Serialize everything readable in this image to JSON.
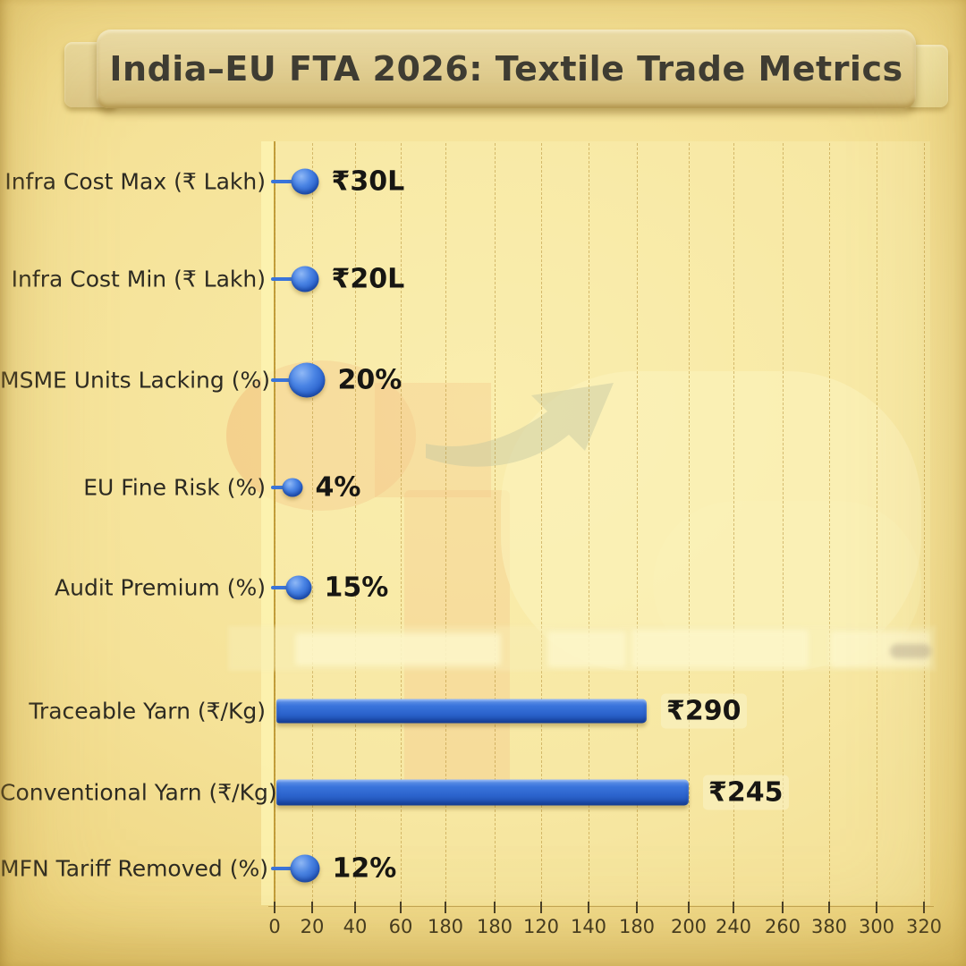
{
  "banner": {
    "title": "India–EU FTA 2026: Textile Trade Metrics"
  },
  "chart_data": {
    "type": "bar",
    "orientation": "horizontal",
    "title": "India–EU FTA 2026: Textile Trade Metrics",
    "categories": [
      "Infra Cost Max (₹ Lakh)",
      "Infra Cost Min (₹ Lakh)",
      "MSME Units Lacking (%)",
      "EU Fine Risk (%)",
      "Audit Premium (%)",
      "Traceable Yarn (₹/Kg)",
      "Conventional Yarn (₹/Kg)",
      "MFN Tariff Removed (%)"
    ],
    "values": [
      30,
      20,
      20,
      4,
      15,
      290,
      245,
      12
    ],
    "value_labels": [
      "₹30L",
      "₹20L",
      "20%",
      "4%",
      "15%",
      "₹290",
      "₹245",
      "12%"
    ],
    "marker_styles": [
      "dot",
      "dot",
      "dot",
      "dot",
      "dot",
      "bar",
      "bar",
      "dot"
    ],
    "x_tick_labels": [
      "0",
      "20",
      "40",
      "60",
      "180",
      "180",
      "120",
      "140",
      "180",
      "200",
      "240",
      "260",
      "380",
      "300",
      "320"
    ],
    "xlim": [
      0,
      320
    ],
    "grid": "vertical-dashed",
    "legend": "none",
    "bar_color": "#2f66cc"
  },
  "colors": {
    "background": "#f4e092",
    "banner": "#e4d298",
    "bar_blue": "#2f66cc",
    "axis": "#c49f3b",
    "text": "#2c2a22",
    "value_text": "#171613"
  }
}
